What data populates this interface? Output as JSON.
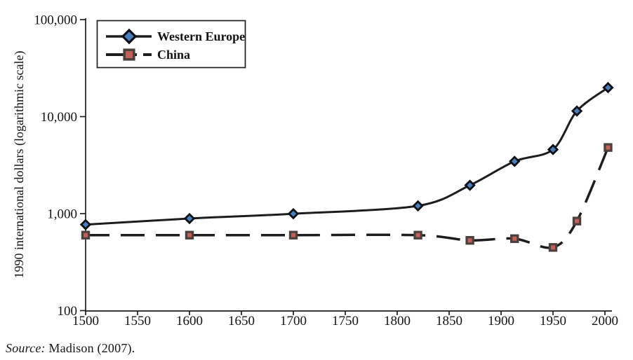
{
  "chart_data": {
    "type": "line",
    "title": "",
    "xlabel": "",
    "ylabel": "1990 international dollars (logarithmic scale)",
    "y_scale": "logarithmic",
    "ylim": [
      100,
      100000
    ],
    "xlim": [
      1500,
      2003
    ],
    "grid": false,
    "legend_position": "top-left",
    "x": [
      1500,
      1600,
      1700,
      1820,
      1870,
      1913,
      1950,
      1973,
      2003
    ],
    "series": [
      {
        "name": "Western Europe",
        "values": [
          771,
          890,
          997,
          1202,
          1960,
          3457,
          4578,
          11417,
          19912
        ],
        "line_style": "solid",
        "marker": "diamond",
        "marker_fill": "#4a7dba",
        "marker_stroke": "#0f1016",
        "line_color": "#1d1d1f"
      },
      {
        "name": "China",
        "values": [
          600,
          600,
          600,
          600,
          530,
          552,
          448,
          838,
          4803
        ],
        "line_style": "dashed",
        "marker": "square",
        "marker_fill": "#c2605b",
        "marker_stroke": "#4c403d",
        "line_color": "#1d1d1f"
      }
    ],
    "yticks": [
      {
        "value": 100,
        "label": "100"
      },
      {
        "value": 1000,
        "label": "1,000"
      },
      {
        "value": 10000,
        "label": "10,000"
      },
      {
        "value": 100000,
        "label": "100,000"
      }
    ],
    "xticks": [
      1500,
      1550,
      1600,
      1650,
      1700,
      1750,
      1800,
      1850,
      1900,
      1950,
      2000
    ],
    "ink_color": "#1d1d1f"
  },
  "source": {
    "prefix": "Source:",
    "citation": "Madison (2007)."
  }
}
